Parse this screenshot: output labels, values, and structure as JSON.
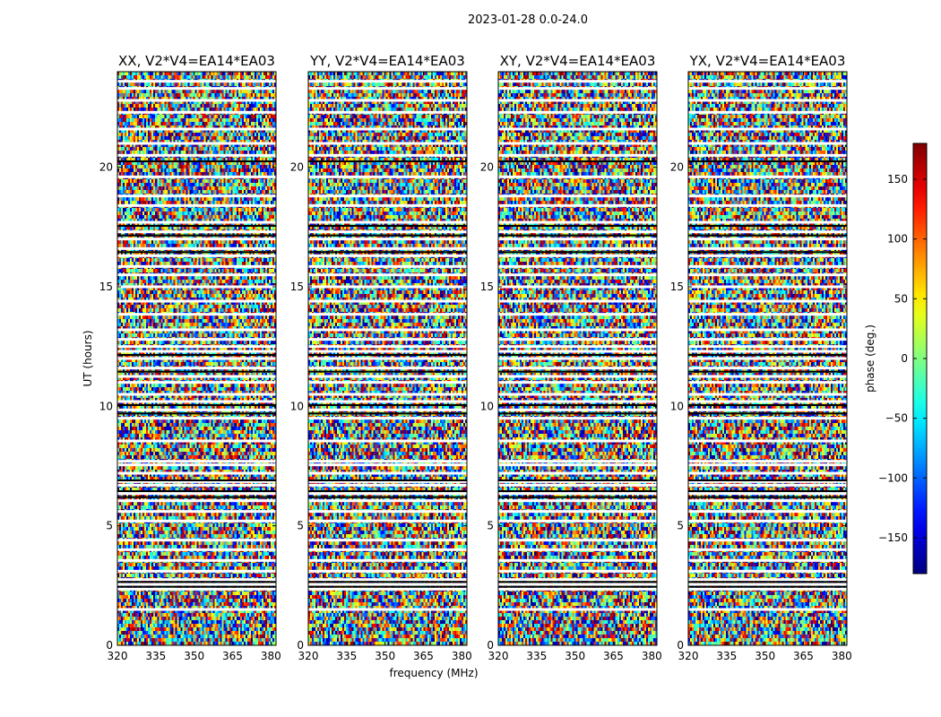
{
  "chart_data": {
    "type": "heatmap",
    "title": "2023-01-28 0.0-24.0",
    "xlabel": "frequency (MHz)",
    "ylabel": "UT (hours)",
    "xlim": [
      320,
      382
    ],
    "ylim": [
      0,
      24
    ],
    "x_ticks": [
      "320",
      "335",
      "350",
      "365",
      "380"
    ],
    "x_tick_values": [
      320,
      335,
      350,
      365,
      380
    ],
    "y_ticks": [
      "0",
      "5",
      "10",
      "15",
      "20"
    ],
    "y_tick_values": [
      0,
      5,
      10,
      15,
      20
    ],
    "panels": [
      {
        "title": "XX, V2*V4=EA14*EA03"
      },
      {
        "title": "YY, V2*V4=EA14*EA03"
      },
      {
        "title": "XY, V2*V4=EA14*EA03"
      },
      {
        "title": "YX, V2*V4=EA14*EA03"
      }
    ],
    "colorbar": {
      "label": "phase (deg.)",
      "colormap": "jet",
      "range": [
        -180,
        180
      ],
      "ticks": [
        "−150",
        "−100",
        "−50",
        "0",
        "50",
        "100",
        "150"
      ],
      "tick_values": [
        -150,
        -100,
        -50,
        0,
        50,
        100,
        150
      ]
    },
    "flagged_rows_ut": [
      1.5,
      2.35,
      2.55,
      2.75,
      3.1,
      3.55,
      4.0,
      4.4,
      5.2,
      5.6,
      6.05,
      6.35,
      6.7,
      6.85,
      7.2,
      7.55,
      7.7,
      8.55,
      9.5,
      9.85,
      10.2,
      10.5,
      11.0,
      11.25,
      11.6,
      12.0,
      12.3,
      12.5,
      12.8,
      13.2,
      13.85,
      14.4,
      15.0,
      15.5,
      15.85,
      16.3,
      16.6,
      17.0,
      17.3,
      17.7,
      18.4,
      18.8,
      19.6,
      20.5,
      21.0,
      21.6,
      22.3,
      22.8,
      23.3,
      23.6
    ],
    "dark_rows_ut": [
      2.45,
      2.65,
      6.2,
      6.45,
      6.9,
      9.7,
      10.05,
      11.45,
      12.15,
      16.45,
      17.15,
      17.55,
      20.25
    ]
  }
}
